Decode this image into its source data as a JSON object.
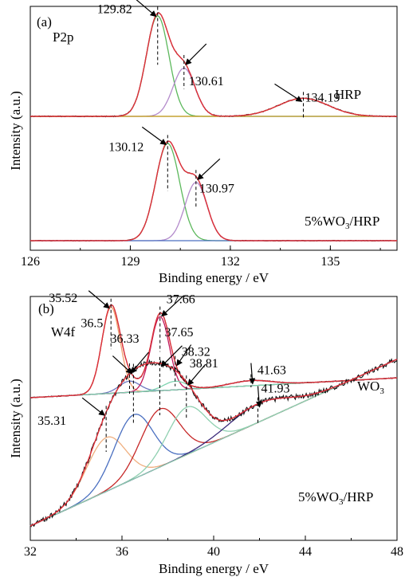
{
  "chart_data": [
    {
      "type": "line",
      "panel_label": "(a)",
      "core_level": "P2p",
      "xlabel": "Binding energy / eV",
      "ylabel": "Intensity (a.u.)",
      "xlim": [
        126,
        137
      ],
      "x_ticks": [
        126,
        129,
        132,
        135
      ],
      "samples": [
        {
          "name": "HRP",
          "peaks": [
            {
              "position": 129.82,
              "label": "129.82",
              "height": 1.0,
              "width": 0.34,
              "color": "#5cb85c"
            },
            {
              "position": 130.61,
              "label": "130.61",
              "height": 0.48,
              "width": 0.33,
              "color": "#b38acb"
            },
            {
              "position": 134.19,
              "label": "134.19",
              "height": 0.18,
              "width": 0.75,
              "color": "#c2a02a"
            }
          ]
        },
        {
          "name": "5%WO3/HRP",
          "name_main": "5%WO",
          "name_sub": "3",
          "name_tail": "/HRP",
          "peaks": [
            {
              "position": 130.12,
              "label": "130.12",
              "height": 1.0,
              "width": 0.36,
              "color": "#5cb85c"
            },
            {
              "position": 130.97,
              "label": "130.97",
              "height": 0.6,
              "width": 0.33,
              "color": "#b38acb"
            }
          ]
        }
      ]
    },
    {
      "type": "line",
      "panel_label": "(b)",
      "core_level": "W4f",
      "xlabel": "Binding energy / eV",
      "ylabel": "Intensity (a.u.)",
      "xlim": [
        32,
        48
      ],
      "x_ticks": [
        32,
        36,
        40,
        44,
        48
      ],
      "samples": [
        {
          "name": "WO3",
          "name_main": "WO",
          "name_sub": "3",
          "name_tail": "",
          "peaks": [
            {
              "position": 35.52,
              "label": "35.52",
              "height": 1.0,
              "width": 0.4,
              "color": "#f0a070"
            },
            {
              "position": 36.33,
              "label": "36.33",
              "height": 0.13,
              "width": 0.45,
              "color": "#6f79c0"
            },
            {
              "position": 37.66,
              "label": "37.66",
              "height": 0.86,
              "width": 0.4,
              "color": "#c2185b"
            },
            {
              "position": 38.32,
              "label": "38.32",
              "height": 0.1,
              "width": 0.5,
              "color": "#7fd4b0"
            },
            {
              "position": 41.63,
              "label": "41.63",
              "height": 0.06,
              "width": 0.9,
              "color": "#6a1b5a"
            }
          ]
        },
        {
          "name": "5%WO3/HRP",
          "name_main": "5%WO",
          "name_sub": "3",
          "name_tail": "/HRP",
          "peaks": [
            {
              "position": 35.31,
              "label": "35.31",
              "height": 0.52,
              "width": 0.85,
              "color": "#f0b080"
            },
            {
              "position": 36.5,
              "label": "36.5",
              "height": 0.62,
              "width": 0.85,
              "color": "#4a6fc0"
            },
            {
              "position": 37.65,
              "label": "37.65",
              "height": 0.56,
              "width": 0.85,
              "color": "#c62828"
            },
            {
              "position": 38.81,
              "label": "38.81",
              "height": 0.46,
              "width": 0.85,
              "color": "#8fd0b0"
            },
            {
              "position": 41.93,
              "label": "41.93",
              "height": 0.18,
              "width": 1.3,
              "color": "#3b2a7a"
            }
          ]
        }
      ]
    }
  ]
}
